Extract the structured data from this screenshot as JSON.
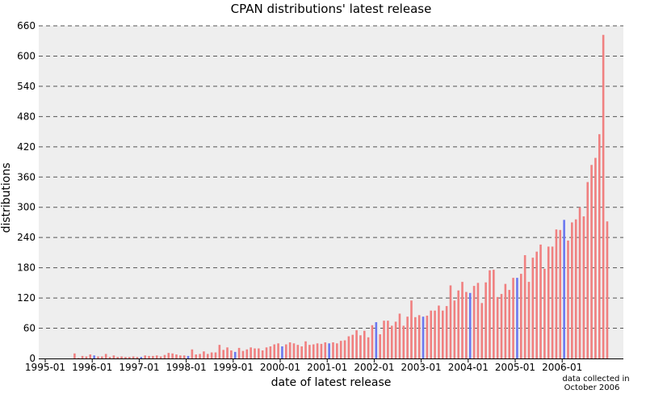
{
  "chart_data": {
    "type": "bar",
    "title": "CPAN distributions' latest release",
    "xlabel": "date of latest release",
    "ylabel": "distributions",
    "note_line1": "data collected in",
    "note_line2": "October 2006",
    "ylim": [
      0,
      660
    ],
    "yticks": [
      0,
      60,
      120,
      180,
      240,
      300,
      360,
      420,
      480,
      540,
      600,
      660
    ],
    "xticks": [
      "1995-01",
      "1996-01",
      "1997-01",
      "1998-01",
      "1999-01",
      "2000-01",
      "2001-01",
      "2002-01",
      "2003-01",
      "2004-01",
      "2005-01",
      "2006-01"
    ],
    "grid": "horizontal dashed",
    "start_month": "1995-08",
    "colors": {
      "normal": "#f08080",
      "january": "#6b78f0",
      "plot_bg": "#eeeeee",
      "grid": "#555555"
    },
    "values": [
      10,
      1,
      5,
      4,
      8,
      6,
      4,
      4,
      9,
      3,
      6,
      3,
      4,
      3,
      3,
      4,
      3,
      3,
      6,
      5,
      5,
      6,
      4,
      7,
      11,
      10,
      8,
      6,
      6,
      5,
      18,
      8,
      9,
      14,
      9,
      12,
      12,
      27,
      17,
      22,
      16,
      13,
      21,
      15,
      18,
      22,
      20,
      20,
      16,
      22,
      24,
      28,
      30,
      24,
      28,
      32,
      30,
      27,
      24,
      34,
      27,
      28,
      30,
      29,
      32,
      30,
      32,
      30,
      35,
      36,
      44,
      47,
      56,
      46,
      55,
      42,
      66,
      72,
      48,
      75,
      75,
      65,
      73,
      89,
      65,
      83,
      115,
      82,
      86,
      83,
      85,
      95,
      95,
      105,
      95,
      104,
      145,
      115,
      135,
      152,
      132,
      130,
      144,
      150,
      110,
      151,
      175,
      176,
      122,
      128,
      148,
      136,
      160,
      160,
      168,
      205,
      152,
      200,
      212,
      226,
      178,
      222,
      222,
      256,
      255,
      275,
      234,
      270,
      276,
      300,
      282,
      350,
      384,
      398,
      445,
      642,
      272
    ]
  }
}
